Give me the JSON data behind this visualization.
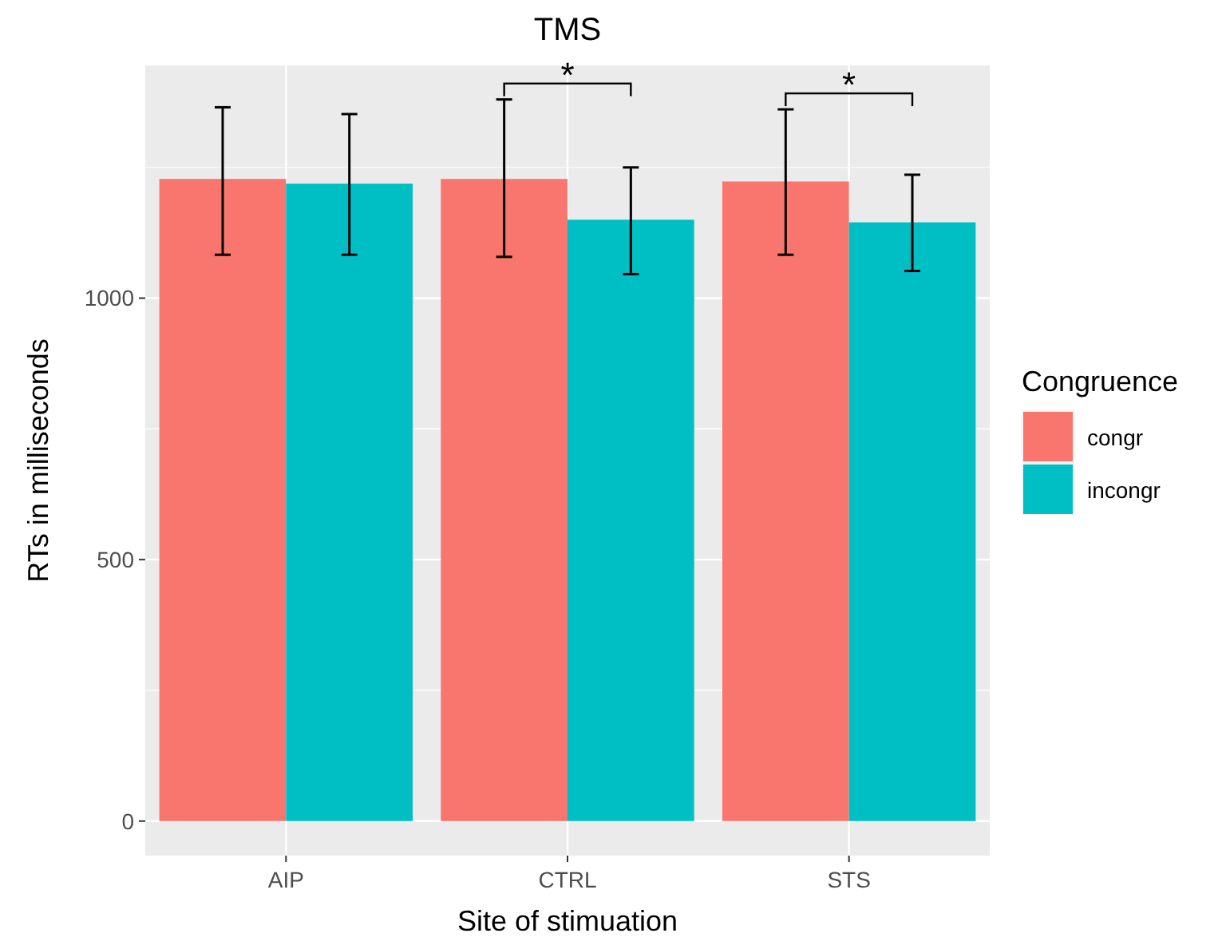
{
  "chart_data": {
    "type": "bar",
    "title": "TMS",
    "xlabel": "Site of stimuation",
    "ylabel": "RTs in milliseconds",
    "legend_title": "Congruence",
    "categories": [
      "AIP",
      "CTRL",
      "STS"
    ],
    "series": [
      {
        "name": "congr",
        "color": "#f8766d",
        "values": [
          1228,
          1228,
          1223
        ],
        "errors": [
          [
            1083,
            1365
          ],
          [
            1079,
            1380
          ],
          [
            1083,
            1361
          ]
        ]
      },
      {
        "name": "incongr",
        "color": "#00bfc4",
        "values": [
          1219,
          1150,
          1145
        ],
        "errors": [
          [
            1083,
            1352
          ],
          [
            1046,
            1250
          ],
          [
            1052,
            1236
          ]
        ]
      }
    ],
    "ylim": [
      -66,
      1445
    ],
    "yticks": [
      0,
      {
        "value": 250,
        "label": null
      },
      500,
      {
        "value": 750,
        "label": null
      },
      1000,
      {
        "value": 1250,
        "label": null
      }
    ],
    "grid": true,
    "legend": "right",
    "annotations": [
      "*",
      "*"
    ]
  }
}
